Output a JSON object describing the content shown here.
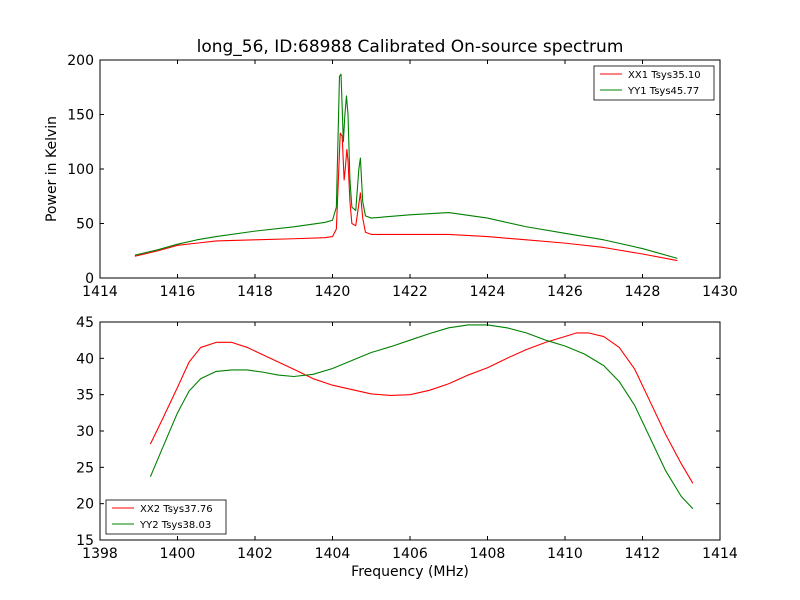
{
  "chart_data": [
    {
      "type": "line",
      "title": "long_56, ID:68988 Calibrated On-source spectrum",
      "xlabel": "",
      "ylabel": "Power in Kelvin",
      "xlim": [
        1414,
        1430
      ],
      "ylim": [
        0,
        200
      ],
      "xticks": [
        "1414",
        "1416",
        "1418",
        "1420",
        "1422",
        "1424",
        "1426",
        "1428",
        "1430"
      ],
      "yticks": [
        "0",
        "50",
        "100",
        "150",
        "200"
      ],
      "grid": false,
      "legend": "top-right",
      "series": [
        {
          "name": "XX1 Tsys35.10",
          "color": "#ff0000",
          "x": [
            1414.9,
            1415.5,
            1416.0,
            1416.5,
            1417.0,
            1418.0,
            1419.0,
            1419.8,
            1420.0,
            1420.1,
            1420.2,
            1420.25,
            1420.3,
            1420.33,
            1420.37,
            1420.4,
            1420.45,
            1420.5,
            1420.6,
            1420.68,
            1420.72,
            1420.78,
            1420.85,
            1421.0,
            1422.0,
            1423.0,
            1424.0,
            1425.0,
            1426.0,
            1427.0,
            1428.0,
            1428.9
          ],
          "y": [
            20,
            25,
            30,
            32,
            34,
            35,
            36,
            37,
            38,
            45,
            133,
            130,
            90,
            100,
            118,
            108,
            70,
            50,
            48,
            68,
            78,
            55,
            42,
            40,
            40,
            40,
            38,
            35,
            32,
            28,
            22,
            16
          ]
        },
        {
          "name": "YY1 Tsys45.77",
          "color": "#008000",
          "x": [
            1414.9,
            1415.5,
            1416.0,
            1416.5,
            1417.0,
            1418.0,
            1419.0,
            1419.8,
            1420.0,
            1420.1,
            1420.18,
            1420.22,
            1420.28,
            1420.32,
            1420.36,
            1420.4,
            1420.45,
            1420.5,
            1420.6,
            1420.68,
            1420.72,
            1420.78,
            1420.85,
            1421.0,
            1422.0,
            1423.0,
            1424.0,
            1425.0,
            1426.0,
            1427.0,
            1428.0,
            1428.9
          ],
          "y": [
            21,
            26,
            31,
            35,
            38,
            43,
            47,
            51,
            53,
            65,
            185,
            187,
            125,
            150,
            167,
            150,
            90,
            65,
            62,
            100,
            110,
            70,
            57,
            55,
            58,
            60,
            55,
            47,
            41,
            35,
            27,
            18
          ]
        }
      ]
    },
    {
      "type": "line",
      "title": "",
      "xlabel": "Frequency (MHz)",
      "ylabel": "",
      "xlim": [
        1398,
        1414
      ],
      "ylim": [
        15,
        45
      ],
      "xticks": [
        "1398",
        "1400",
        "1402",
        "1404",
        "1406",
        "1408",
        "1410",
        "1412",
        "1414"
      ],
      "yticks": [
        "15",
        "20",
        "25",
        "30",
        "35",
        "40",
        "45"
      ],
      "grid": false,
      "legend": "bottom-left",
      "series": [
        {
          "name": "XX2 Tsys37.76",
          "color": "#ff0000",
          "x": [
            1399.3,
            1399.6,
            1400.0,
            1400.3,
            1400.6,
            1401.0,
            1401.4,
            1401.8,
            1402.2,
            1402.6,
            1403.0,
            1403.5,
            1404.0,
            1404.5,
            1405.0,
            1405.5,
            1406.0,
            1406.5,
            1407.0,
            1407.5,
            1408.0,
            1408.5,
            1409.0,
            1409.5,
            1410.0,
            1410.3,
            1410.6,
            1411.0,
            1411.4,
            1411.8,
            1412.2,
            1412.6,
            1413.0,
            1413.3
          ],
          "y": [
            28.2,
            31.5,
            36,
            39.5,
            41.5,
            42.2,
            42.2,
            41.5,
            40.5,
            39.5,
            38.5,
            37.2,
            36.3,
            35.7,
            35.1,
            34.9,
            35.0,
            35.6,
            36.5,
            37.7,
            38.7,
            40.0,
            41.2,
            42.2,
            43.0,
            43.5,
            43.5,
            43.0,
            41.5,
            38.5,
            34,
            29.5,
            25.5,
            22.8
          ]
        },
        {
          "name": "YY2 Tsys38.03",
          "color": "#008000",
          "x": [
            1399.3,
            1399.6,
            1400.0,
            1400.3,
            1400.6,
            1401.0,
            1401.4,
            1401.8,
            1402.2,
            1402.6,
            1403.0,
            1403.5,
            1404.0,
            1404.5,
            1405.0,
            1405.5,
            1406.0,
            1406.5,
            1407.0,
            1407.5,
            1408.0,
            1408.5,
            1409.0,
            1409.5,
            1410.0,
            1410.5,
            1411.0,
            1411.4,
            1411.8,
            1412.2,
            1412.6,
            1413.0,
            1413.3
          ],
          "y": [
            23.7,
            27.5,
            32.5,
            35.5,
            37.2,
            38.2,
            38.4,
            38.4,
            38.1,
            37.7,
            37.5,
            37.8,
            38.6,
            39.7,
            40.8,
            41.6,
            42.5,
            43.4,
            44.2,
            44.6,
            44.6,
            44.2,
            43.5,
            42.5,
            41.7,
            40.6,
            39.0,
            36.8,
            33.5,
            29.0,
            24.5,
            21.0,
            19.3
          ]
        }
      ]
    }
  ]
}
